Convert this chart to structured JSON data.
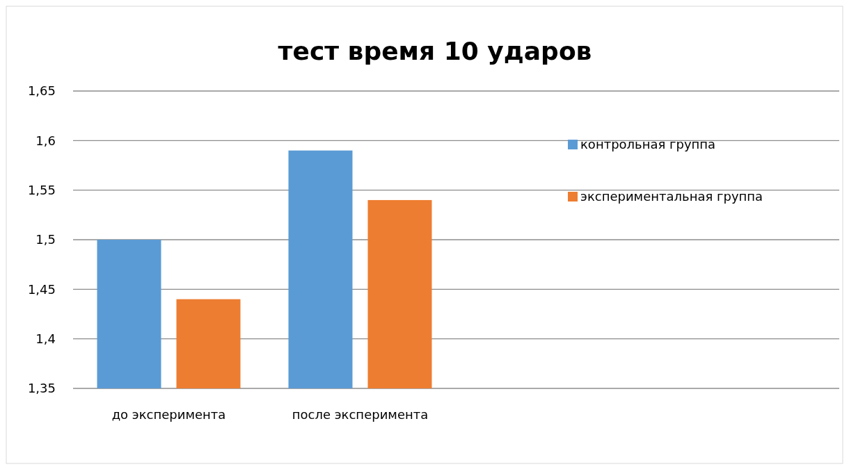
{
  "chart_data": {
    "type": "bar",
    "title": "тест время 10 ударов",
    "categories": [
      "до эксперимента",
      "после эксперимента"
    ],
    "series": [
      {
        "name": "контрольная группа",
        "color": "#5b9bd5",
        "values": [
          1.5,
          1.59
        ]
      },
      {
        "name": "экспериментальная группа",
        "color": "#ed7d31",
        "values": [
          1.44,
          1.54
        ]
      }
    ],
    "ylim": [
      1.35,
      1.65
    ],
    "yticks": [
      {
        "value": 1.35,
        "label": "1,35"
      },
      {
        "value": 1.4,
        "label": "1,4"
      },
      {
        "value": 1.45,
        "label": "1,45"
      },
      {
        "value": 1.5,
        "label": "1,5"
      },
      {
        "value": 1.55,
        "label": "1,55"
      },
      {
        "value": 1.6,
        "label": "1,6"
      },
      {
        "value": 1.65,
        "label": "1,65"
      }
    ],
    "grid": "y",
    "legend": "right"
  }
}
